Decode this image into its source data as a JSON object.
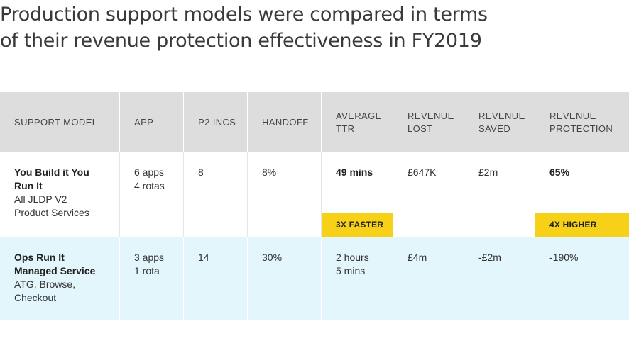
{
  "title": {
    "line1": "Production support models were compared in terms",
    "line2": "of their revenue protection effectiveness in FY2019"
  },
  "table": {
    "headers": [
      [
        "SUPPORT MODEL"
      ],
      [
        "APP"
      ],
      [
        "P2 INCS"
      ],
      [
        "HANDOFF"
      ],
      [
        "AVERAGE",
        "TTR"
      ],
      [
        "REVENUE",
        "LOST"
      ],
      [
        "REVENUE",
        "SAVED"
      ],
      [
        "REVENUE",
        "PROTECTION"
      ]
    ],
    "rows": [
      {
        "model_name": [
          "You Build it You",
          "Run It"
        ],
        "model_desc": [
          "All JLDP V2",
          "Product Services"
        ],
        "app": [
          "6 apps",
          "4 rotas"
        ],
        "p2_incs": "8",
        "handoff": "8%",
        "average_ttr": [
          "49 mins"
        ],
        "revenue_lost": "£647K",
        "revenue_saved": "£2m",
        "revenue_protection": "65%",
        "ttr_badge": "3X FASTER",
        "protection_badge": "4X HIGHER"
      },
      {
        "model_name": [
          "Ops Run It",
          "Managed Service"
        ],
        "model_desc": [
          "ATG, Browse,",
          "Checkout"
        ],
        "app": [
          "3 apps",
          "1 rota"
        ],
        "p2_incs": "14",
        "handoff": "30%",
        "average_ttr": [
          "2 hours",
          "5 mins"
        ],
        "revenue_lost": "£4m",
        "revenue_saved": "-£2m",
        "revenue_protection": "-190%"
      }
    ]
  },
  "colors": {
    "header_bg": "#dddddd",
    "row2_bg": "#e2f6fb",
    "badge_bg": "#f7d117"
  }
}
